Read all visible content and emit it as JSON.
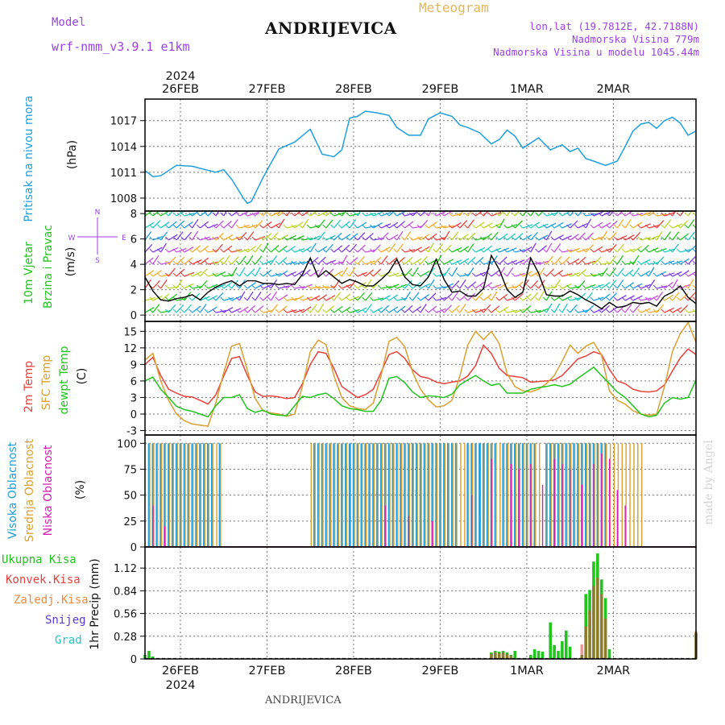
{
  "header": {
    "model_label": "Model",
    "model_name": "wrf-nmm_v3.9.1 e1km",
    "station": "ANDRIJEVICA",
    "product": "Meteogram",
    "coords": "lon,lat (19.7812E, 42.7188N)",
    "elev": "Nadmorska Visina 779m",
    "elev_model": "Nadmorska Visina u modelu 1045.44m",
    "year": "2024",
    "footer_station": "ANDRIJEVICA",
    "watermark": "made by Angel"
  },
  "colors": {
    "pressure": "#1e9fe0",
    "temp2m": "#e8413c",
    "sfc": "#dba030",
    "dew": "#22c41e",
    "high_cloud": "#1e9fe0",
    "mid_cloud": "#dba030",
    "low_cloud": "#d81eb5",
    "total_precip": "#22c41e",
    "conv_precip": "#e8413c",
    "frozen": "#f08a3a",
    "snow": "#5a3ad8",
    "grad": "#22c4c4",
    "purple_text": "#9b42e6",
    "wind_arrow": "#c44ee0"
  },
  "chart_data": [
    {
      "type": "line",
      "id": "pressure",
      "ylabel": "Pritisak na nivou mora",
      "unit": "(hPa)",
      "ylim": [
        1006.5,
        1019.5
      ],
      "yticks": [
        1008,
        1011,
        1014,
        1017
      ],
      "x_labels": [
        "26FEB",
        "27FEB",
        "28FEB",
        "29FEB",
        "1MAR",
        "2MAR"
      ],
      "hours": [
        0,
        2,
        4,
        8,
        12,
        18,
        20,
        22,
        25,
        26,
        27,
        30,
        34,
        36,
        38,
        42,
        45,
        48,
        50,
        52,
        54,
        56,
        59,
        62,
        64,
        67,
        70,
        72,
        75,
        78,
        80,
        82,
        85,
        88,
        90,
        92,
        94,
        96,
        100,
        103,
        106,
        108,
        110,
        112,
        114,
        117,
        120,
        122,
        124,
        126,
        128,
        130,
        132,
        134,
        136,
        138,
        140
      ],
      "values": [
        1011.2,
        1010.5,
        1010.6,
        1011.8,
        1011.7,
        1011.0,
        1011.3,
        1010.2,
        1008.0,
        1007.4,
        1007.6,
        1010.4,
        1013.7,
        1014.1,
        1014.5,
        1016.0,
        1013.1,
        1012.8,
        1013.6,
        1017.3,
        1017.5,
        1018.1,
        1017.9,
        1017.6,
        1016.2,
        1015.3,
        1015.3,
        1017.2,
        1017.9,
        1017.5,
        1016.5,
        1016.2,
        1015.6,
        1014.3,
        1014.8,
        1015.9,
        1015.2,
        1013.8,
        1015.0,
        1013.6,
        1014.2,
        1013.4,
        1013.8,
        1012.6,
        1012.3,
        1011.8,
        1012.3,
        1014.0,
        1015.8,
        1016.6,
        1016.8,
        1016.1,
        1017.0,
        1017.4,
        1016.7,
        1015.3,
        1015.8
      ]
    },
    {
      "type": "line",
      "id": "wind",
      "ylabel_1": "10m Vjetar",
      "ylabel_2": "Brzina i Pravac",
      "unit": "(m/s)",
      "compass_n": "N",
      "compass_s": "S",
      "compass_w": "W",
      "compass_e": "E",
      "ylim": [
        -0.5,
        8.2
      ],
      "yticks": [
        0,
        2,
        4,
        6,
        8
      ],
      "hours": [
        0,
        2,
        4,
        6,
        8,
        10,
        12,
        14,
        16,
        18,
        20,
        22,
        24,
        26,
        28,
        30,
        32,
        34,
        36,
        38,
        40,
        42,
        44,
        46,
        48,
        50,
        52,
        54,
        56,
        58,
        60,
        62,
        64,
        66,
        68,
        70,
        72,
        74,
        76,
        78,
        80,
        82,
        84,
        86,
        88,
        90,
        92,
        94,
        96,
        98,
        100,
        102,
        104,
        106,
        108,
        110,
        112,
        114,
        116,
        118,
        120,
        122,
        124,
        126,
        128,
        130,
        132,
        134,
        136,
        138,
        140
      ],
      "values": [
        3.0,
        1.9,
        1.2,
        1.1,
        1.3,
        1.4,
        1.6,
        1.2,
        1.8,
        2.2,
        2.5,
        2.7,
        2.3,
        2.7,
        2.7,
        2.5,
        2.5,
        2.4,
        2.5,
        2.4,
        3.2,
        4.5,
        3.0,
        3.5,
        3.0,
        2.5,
        2.8,
        2.6,
        2.3,
        2.3,
        2.8,
        3.4,
        4.4,
        3.0,
        2.4,
        2.3,
        3.0,
        4.4,
        2.8,
        1.8,
        1.9,
        1.5,
        1.5,
        2.1,
        4.7,
        3.6,
        2.0,
        1.4,
        1.8,
        4.5,
        3.3,
        1.6,
        1.5,
        1.5,
        1.9,
        1.6,
        1.2,
        0.9,
        0.5,
        1.0,
        0.6,
        0.7,
        1.0,
        0.9,
        1.0,
        0.7,
        1.5,
        1.8,
        2.3,
        1.4,
        0.9
      ]
    },
    {
      "type": "line",
      "id": "temperature",
      "ylabel_1": "2m Temp",
      "ylabel_2": "SFC Temp",
      "ylabel_3": "dewpt Temp",
      "unit": "(C)",
      "ylim": [
        -3.8,
        16.8
      ],
      "yticks": [
        -3,
        0,
        3,
        6,
        9,
        12,
        15
      ],
      "hours": [
        0,
        2,
        4,
        6,
        8,
        10,
        12,
        14,
        16,
        18,
        20,
        22,
        24,
        26,
        28,
        30,
        32,
        34,
        36,
        38,
        40,
        42,
        44,
        46,
        48,
        50,
        52,
        54,
        56,
        58,
        60,
        62,
        64,
        66,
        68,
        70,
        72,
        74,
        76,
        78,
        80,
        82,
        84,
        86,
        88,
        90,
        92,
        94,
        96,
        98,
        100,
        102,
        104,
        106,
        108,
        110,
        112,
        114,
        116,
        118,
        120,
        122,
        124,
        126,
        128,
        130,
        132,
        134,
        136,
        138,
        140
      ],
      "series": [
        {
          "name": "2m Temp",
          "values": [
            9.0,
            10.3,
            7.0,
            4.5,
            3.8,
            3.2,
            3.1,
            2.5,
            1.8,
            3.5,
            6.9,
            10.1,
            10.4,
            7.0,
            4.0,
            3.2,
            3.3,
            3.1,
            2.8,
            3.0,
            5.5,
            9.0,
            11.3,
            11.0,
            8.3,
            5.0,
            4.0,
            3.0,
            3.5,
            4.5,
            7.6,
            10.8,
            11.3,
            10.1,
            8.0,
            6.8,
            6.5,
            5.8,
            5.5,
            5.8,
            6.0,
            6.9,
            8.8,
            12.5,
            11.0,
            8.3,
            7.0,
            6.8,
            6.6,
            5.8,
            5.9,
            6.0,
            6.2,
            7.0,
            8.5,
            10.0,
            10.5,
            11.3,
            10.8,
            8.1,
            6.0,
            5.5,
            4.5,
            4.1,
            4.0,
            4.2,
            5.3,
            7.8,
            10.2,
            11.8,
            10.8
          ]
        },
        {
          "name": "SFC Temp",
          "values": [
            9.8,
            11.0,
            6.0,
            2.5,
            0.0,
            -1.2,
            -1.8,
            -2.0,
            -2.2,
            2.0,
            7.5,
            12.3,
            12.8,
            8.0,
            2.8,
            0.6,
            0.2,
            0.0,
            -0.4,
            0.0,
            5.0,
            11.3,
            13.4,
            12.6,
            7.0,
            3.0,
            1.5,
            1.0,
            0.8,
            2.0,
            7.0,
            13.2,
            13.9,
            12.2,
            7.6,
            4.5,
            2.6,
            1.3,
            1.5,
            2.5,
            6.9,
            12.5,
            15.0,
            13.5,
            15.0,
            12.8,
            7.3,
            5.0,
            4.2,
            4.0,
            4.5,
            5.5,
            7.0,
            9.6,
            12.5,
            11.0,
            12.3,
            13.0,
            10.7,
            4.2,
            2.5,
            1.8,
            0.6,
            0.0,
            -0.2,
            0.0,
            5.0,
            11.3,
            14.6,
            16.6,
            13.0
          ]
        },
        {
          "name": "dewpt Temp",
          "values": [
            6.0,
            6.7,
            4.5,
            3.0,
            1.4,
            0.8,
            0.5,
            0.0,
            -0.5,
            1.5,
            3.0,
            3.0,
            3.5,
            1.0,
            0.3,
            0.7,
            0.0,
            -0.2,
            -0.3,
            1.5,
            3.2,
            3.0,
            3.5,
            3.8,
            2.8,
            1.5,
            1.0,
            0.8,
            0.5,
            0.5,
            2.5,
            6.5,
            6.8,
            5.7,
            4.0,
            3.0,
            3.3,
            3.2,
            3.0,
            3.6,
            5.3,
            6.2,
            7.0,
            6.0,
            5.2,
            5.5,
            3.8,
            3.8,
            3.8,
            4.5,
            4.8,
            5.0,
            5.3,
            5.0,
            5.4,
            6.5,
            7.5,
            8.5,
            7.0,
            5.5,
            4.0,
            3.0,
            1.5,
            0.0,
            -0.5,
            -0.2,
            2.0,
            3.0,
            2.7,
            3.0,
            6.2
          ]
        }
      ]
    },
    {
      "type": "bar",
      "id": "clouds",
      "ylabel_1": "Visoka Oblacnost",
      "ylabel_2": "Srednja Oblacnost",
      "ylabel_3": "Niska Oblacnost",
      "unit": "(%)",
      "ylim": [
        0,
        108
      ],
      "yticks": [
        0,
        25,
        50,
        75,
        100
      ],
      "series": [
        {
          "name": "Visoka Oblacnost",
          "segments": [
            [
              1,
              8,
              100
            ],
            [
              9,
              17,
              100
            ],
            [
              18.5,
              19.5,
              100
            ],
            [
              43,
              53,
              100
            ],
            [
              53.5,
              64,
              100
            ],
            [
              65,
              79,
              100
            ],
            [
              82,
              89,
              100
            ],
            [
              91,
              99,
              100
            ],
            [
              102,
              112,
              100
            ],
            [
              113,
              117,
              100
            ]
          ]
        },
        {
          "name": "Srednja Oblacnost",
          "segments": [
            [
              1,
              19,
              100
            ],
            [
              42,
              51,
              100
            ],
            [
              53,
              76,
              100
            ],
            [
              76,
              84,
              100
            ],
            [
              86,
              100,
              100
            ],
            [
              102,
              126,
              100
            ]
          ]
        },
        {
          "name": "Niska Oblacnost",
          "values_hours": [
            2,
            5,
            61,
            67,
            73,
            83,
            88,
            93,
            95,
            98,
            101,
            104,
            106,
            108,
            111,
            114,
            116,
            118,
            120,
            122
          ],
          "values": [
            40,
            20,
            40,
            30,
            25,
            50,
            85,
            80,
            75,
            80,
            60,
            85,
            80,
            75,
            60,
            80,
            90,
            85,
            55,
            40
          ]
        }
      ]
    },
    {
      "type": "bar",
      "id": "precip",
      "ylabel": "1hr Precip (mm)",
      "ylim": [
        0,
        1.38
      ],
      "yticks": [
        0,
        0.28,
        0.56,
        0.84,
        1.12
      ],
      "legend": [
        "Ukupna Kisa",
        "Konvek.Kisa",
        "Zaledj.Kisa",
        "Snijeg",
        "Grad"
      ],
      "series": [
        {
          "name": "Ukupna Kisa",
          "hours": [
            0,
            1,
            2,
            88,
            89,
            90,
            91,
            92,
            93,
            94,
            98,
            99,
            100,
            101,
            103,
            104,
            105,
            106,
            107,
            108,
            111,
            112,
            113,
            114,
            115,
            116,
            117,
            118,
            140
          ],
          "values": [
            0.05,
            0.1,
            0.03,
            0.08,
            0.1,
            0.09,
            0.1,
            0.08,
            0.05,
            0.1,
            0.05,
            0.12,
            0.1,
            0.09,
            0.45,
            0.17,
            0.1,
            0.22,
            0.35,
            0.15,
            0.05,
            0.8,
            0.85,
            1.2,
            1.3,
            0.98,
            0.75,
            0.12,
            0.32
          ]
        },
        {
          "name": "Konvek.Kisa",
          "hours": [
            88,
            89,
            90,
            91,
            92,
            93,
            111,
            112,
            113,
            114,
            115,
            116,
            117,
            140
          ],
          "values": [
            0.06,
            0.08,
            0.07,
            0.08,
            0.06,
            0.04,
            0.18,
            0.4,
            0.6,
            0.9,
            1.0,
            0.8,
            0.5,
            0.34
          ]
        }
      ]
    }
  ]
}
